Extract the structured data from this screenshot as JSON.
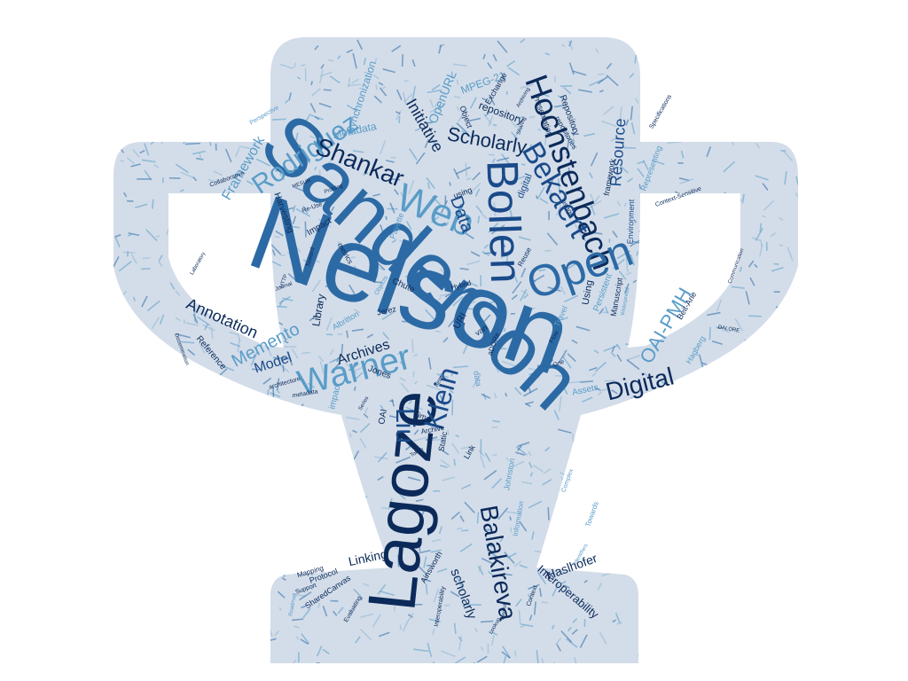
{
  "colors": {
    "background": "#ffffff",
    "trophy_fill": "#d3dde9",
    "word_darkest": "#0b2a5a",
    "word_dark": "#1a4a8a",
    "word_medium": "#2c6aa5",
    "word_light": "#5a9cc8",
    "word_pale": "#8fb6d4"
  },
  "shape": "trophy",
  "words": [
    {
      "text": "Nelson",
      "color": "word_medium"
    },
    {
      "text": "Sanderson",
      "color": "word_medium"
    },
    {
      "text": "Lagoze",
      "color": "word_darkest"
    },
    {
      "text": "Bollen",
      "color": "word_dark"
    },
    {
      "text": "Hochstenbach",
      "color": "word_darkest"
    },
    {
      "text": "Warner",
      "color": "word_light"
    },
    {
      "text": "Open",
      "color": "word_medium"
    },
    {
      "text": "Web",
      "color": "word_light"
    },
    {
      "text": "Bekaert",
      "color": "word_dark"
    },
    {
      "text": "Balakireva",
      "color": "word_darkest"
    },
    {
      "text": "Klein",
      "color": "word_dark"
    },
    {
      "text": "Liu",
      "color": "word_dark"
    },
    {
      "text": "Rodriguez",
      "color": "word_light"
    },
    {
      "text": "Shankar",
      "color": "word_darkest"
    },
    {
      "text": "Digital",
      "color": "word_darkest"
    },
    {
      "text": "OAI-PMH",
      "color": "word_light"
    },
    {
      "text": "Scholarly",
      "color": "word_darkest"
    },
    {
      "text": "Memento",
      "color": "word_light"
    },
    {
      "text": "Data",
      "color": "word_dark"
    },
    {
      "text": "Initiative",
      "color": "word_darkest"
    },
    {
      "text": "Annotation",
      "color": "word_darkest"
    },
    {
      "text": "Framework",
      "color": "word_light"
    },
    {
      "text": "Resource",
      "color": "word_dark"
    },
    {
      "text": "Archives",
      "color": "word_darkest"
    },
    {
      "text": "Model",
      "color": "word_dark"
    },
    {
      "text": "scholarly",
      "color": "word_darkest"
    },
    {
      "text": "Haslhofer",
      "color": "word_darkest"
    },
    {
      "text": "Linking",
      "color": "word_darkest"
    },
    {
      "text": "Interoperability",
      "color": "word_darkest"
    },
    {
      "text": "OpenURL",
      "color": "word_light"
    },
    {
      "text": "MPEG-21",
      "color": "word_light"
    },
    {
      "text": "repository",
      "color": "word_darkest"
    },
    {
      "text": "Metadata",
      "color": "word_light"
    },
    {
      "text": "Synchronization",
      "color": "word_light"
    },
    {
      "text": "Harvesting",
      "color": "word_darkest"
    },
    {
      "text": "Library",
      "color": "word_darkest"
    },
    {
      "text": "Reference",
      "color": "word_darkest"
    },
    {
      "text": "Jones",
      "color": "word_darkest"
    },
    {
      "text": "URI",
      "color": "word_darkest"
    },
    {
      "text": "Persistent",
      "color": "word_light"
    },
    {
      "text": "Using",
      "color": "word_darkest"
    },
    {
      "text": "Assets",
      "color": "word_light"
    },
    {
      "text": "Johnston",
      "color": "word_light"
    },
    {
      "text": "Ainsworth",
      "color": "word_darkest"
    },
    {
      "text": "SharedCanvas",
      "color": "word_darkest"
    },
    {
      "text": "Protocol",
      "color": "word_darkest"
    },
    {
      "text": "Mapping",
      "color": "word_darkest"
    },
    {
      "text": "Beit-Arie",
      "color": "word_darkest"
    },
    {
      "text": "Hagberg",
      "color": "word_light"
    },
    {
      "text": "Payette",
      "color": "word_light"
    },
    {
      "text": "Environment",
      "color": "word_dark"
    },
    {
      "text": "framework",
      "color": "word_darkest"
    },
    {
      "text": "Repository",
      "color": "word_darkest"
    },
    {
      "text": "Preservation",
      "color": "word_darkest"
    },
    {
      "text": "Exchange",
      "color": "word_darkest"
    },
    {
      "text": "Object",
      "color": "word_darkest"
    },
    {
      "text": "digital",
      "color": "word_dark"
    },
    {
      "text": "Impact",
      "color": "word_darkest"
    },
    {
      "text": "impact",
      "color": "word_light"
    },
    {
      "text": "Time",
      "color": "word_darkest"
    },
    {
      "text": "OAI",
      "color": "word_darkest"
    },
    {
      "text": "Link",
      "color": "word_darkest"
    },
    {
      "text": "Static",
      "color": "word_darkest"
    },
    {
      "text": "Chute",
      "color": "word_darkest"
    },
    {
      "text": "Jerez",
      "color": "word_darkest"
    },
    {
      "text": "Albritton",
      "color": "word_light"
    },
    {
      "text": "van",
      "color": "word_darkest"
    },
    {
      "text": "Travel",
      "color": "word_light"
    },
    {
      "text": "Manuscript",
      "color": "word_darkest"
    },
    {
      "text": "Hybrid",
      "color": "word_darkest"
    },
    {
      "text": "Reuse",
      "color": "word_darkest"
    },
    {
      "text": "metrics",
      "color": "word_darkest"
    },
    {
      "text": "Towards",
      "color": "word_light"
    },
    {
      "text": "Information",
      "color": "word_light"
    },
    {
      "text": "using",
      "color": "word_darkest"
    },
    {
      "text": "usage",
      "color": "word_darkest"
    },
    {
      "text": "repositories",
      "color": "word_darkest"
    },
    {
      "text": "Representing",
      "color": "word_light"
    },
    {
      "text": "Context-Sensitive",
      "color": "word_darkest"
    },
    {
      "text": "Specifications",
      "color": "word_darkest"
    },
    {
      "text": "Collaborative",
      "color": "word_darkest"
    },
    {
      "text": "Perspective",
      "color": "word_light"
    },
    {
      "text": "Archive",
      "color": "word_darkest"
    },
    {
      "text": "data",
      "color": "word_light"
    },
    {
      "text": "aDORe",
      "color": "word_darkest"
    },
    {
      "text": "Toward",
      "color": "word_darkest"
    },
    {
      "text": "Objects",
      "color": "word_light"
    },
    {
      "text": "architecture",
      "color": "word_darkest"
    },
    {
      "text": "metadata",
      "color": "word_darkest"
    },
    {
      "text": "Interoperability",
      "color": "word_darkest"
    },
    {
      "text": "Evaluating",
      "color": "word_darkest"
    },
    {
      "text": "Support",
      "color": "word_darkest"
    },
    {
      "text": "Context",
      "color": "word_darkest"
    },
    {
      "text": "Re-Use",
      "color": "word_darkest"
    },
    {
      "text": "MESUR",
      "color": "word_darkest"
    },
    {
      "text": "Profiling",
      "color": "word_darkest"
    },
    {
      "text": "Sharing",
      "color": "word_darkest"
    },
    {
      "text": "Archiving",
      "color": "word_darkest"
    },
    {
      "text": "Laboratory",
      "color": "word_darkest"
    },
    {
      "text": "Dissemination",
      "color": "word_darkest"
    },
    {
      "text": "Journal",
      "color": "word_darkest"
    },
    {
      "text": "HTTP",
      "color": "word_darkest"
    },
    {
      "text": "DALORE",
      "color": "word_darkest"
    },
    {
      "text": "Communication",
      "color": "word_darkest"
    },
    {
      "text": "One",
      "color": "word_darkest"
    },
    {
      "text": "Flow",
      "color": "word_darkest"
    },
    {
      "text": "Item",
      "color": "word_darkest"
    },
    {
      "text": "Series",
      "color": "word_darkest"
    },
    {
      "text": "Token",
      "color": "word_darkest"
    },
    {
      "text": "Complex",
      "color": "word_light"
    },
    {
      "text": "Identifiers",
      "color": "word_light"
    },
    {
      "text": "Roadmap",
      "color": "word_light"
    },
    {
      "text": "Layout",
      "color": "word_darkest"
    },
    {
      "text": "Lookup",
      "color": "word_darkest"
    },
    {
      "text": "Widespread",
      "color": "word_light"
    }
  ]
}
